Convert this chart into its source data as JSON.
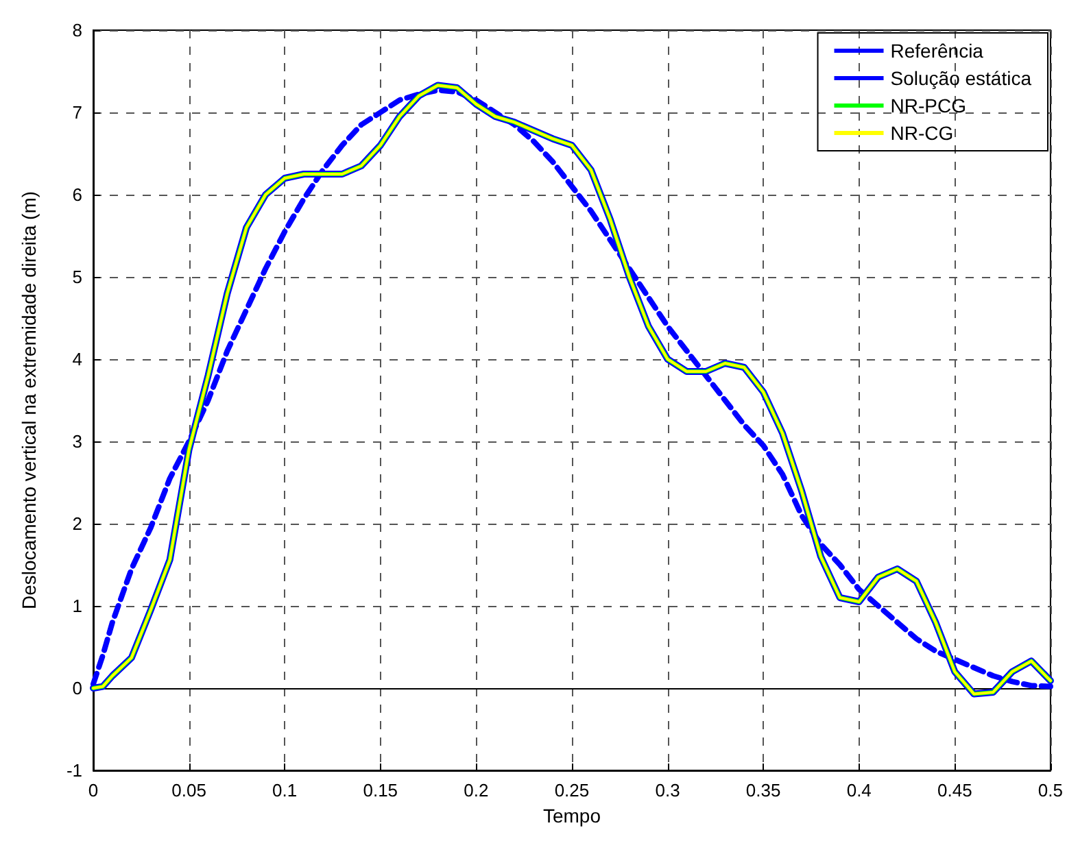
{
  "chart_data": {
    "type": "line",
    "xlabel": "Tempo",
    "ylabel": "Deslocamento vertical na extremidade direita (m)",
    "xlim": [
      0,
      0.5
    ],
    "xticks": [
      0,
      0.05,
      0.1,
      0.15,
      0.2,
      0.25,
      0.3,
      0.35,
      0.4,
      0.45,
      0.5
    ],
    "ylim": [
      -1,
      8
    ],
    "yticks": [
      -1,
      0,
      1,
      2,
      3,
      4,
      5,
      6,
      7,
      8
    ],
    "grid": true,
    "legend": "top right",
    "marker": "none",
    "x": [
      0,
      0.005,
      0.01,
      0.02,
      0.03,
      0.04,
      0.05,
      0.06,
      0.07,
      0.08,
      0.09,
      0.1,
      0.11,
      0.12,
      0.13,
      0.14,
      0.15,
      0.16,
      0.17,
      0.18,
      0.19,
      0.2,
      0.21,
      0.22,
      0.23,
      0.24,
      0.25,
      0.26,
      0.27,
      0.28,
      0.29,
      0.3,
      0.31,
      0.32,
      0.33,
      0.34,
      0.35,
      0.36,
      0.37,
      0.38,
      0.39,
      0.4,
      0.41,
      0.42,
      0.43,
      0.44,
      0.45,
      0.46,
      0.47,
      0.48,
      0.49,
      0.5
    ],
    "series": [
      {
        "name": "Referência",
        "color": "#0000ff",
        "line_style": "solid",
        "values": [
          0,
          0.02,
          0.15,
          0.37,
          0.95,
          1.56,
          2.9,
          3.8,
          4.8,
          5.6,
          6.0,
          6.2,
          6.25,
          6.25,
          6.25,
          6.35,
          6.6,
          6.95,
          7.2,
          7.33,
          7.3,
          7.1,
          6.95,
          6.88,
          6.78,
          6.68,
          6.6,
          6.3,
          5.7,
          5.0,
          4.4,
          4.0,
          3.85,
          3.85,
          3.95,
          3.9,
          3.6,
          3.1,
          2.4,
          1.6,
          1.1,
          1.05,
          1.35,
          1.45,
          1.3,
          0.8,
          0.2,
          -0.07,
          -0.05,
          0.2,
          0.33,
          0.09
        ]
      },
      {
        "name": "Solução estática",
        "color": "#0000ff",
        "line_style": "dashed",
        "values": [
          0.05,
          0.4,
          0.8,
          1.45,
          1.95,
          2.55,
          3.0,
          3.5,
          4.1,
          4.6,
          5.1,
          5.55,
          5.95,
          6.3,
          6.6,
          6.85,
          7.0,
          7.15,
          7.22,
          7.27,
          7.25,
          7.15,
          7.0,
          6.85,
          6.65,
          6.4,
          6.1,
          5.8,
          5.45,
          5.1,
          4.75,
          4.4,
          4.1,
          3.8,
          3.5,
          3.2,
          2.95,
          2.6,
          2.1,
          1.75,
          1.5,
          1.2,
          1.0,
          0.8,
          0.6,
          0.45,
          0.35,
          0.25,
          0.15,
          0.08,
          0.03,
          0.02
        ]
      },
      {
        "name": "NR-PCG",
        "color": "#00ff00",
        "line_style": "solid",
        "values": [
          0,
          0.02,
          0.15,
          0.37,
          0.95,
          1.56,
          2.9,
          3.8,
          4.8,
          5.6,
          6.0,
          6.2,
          6.25,
          6.25,
          6.25,
          6.35,
          6.6,
          6.95,
          7.2,
          7.33,
          7.3,
          7.1,
          6.95,
          6.88,
          6.78,
          6.68,
          6.6,
          6.3,
          5.7,
          5.0,
          4.4,
          4.0,
          3.85,
          3.85,
          3.95,
          3.9,
          3.6,
          3.1,
          2.4,
          1.6,
          1.1,
          1.05,
          1.35,
          1.45,
          1.3,
          0.8,
          0.2,
          -0.07,
          -0.05,
          0.2,
          0.33,
          0.09
        ]
      },
      {
        "name": "NR-CG",
        "color": "#ffff00",
        "line_style": "solid",
        "values": [
          0,
          0.02,
          0.15,
          0.37,
          0.95,
          1.56,
          2.9,
          3.8,
          4.8,
          5.6,
          6.0,
          6.2,
          6.25,
          6.25,
          6.25,
          6.35,
          6.6,
          6.95,
          7.2,
          7.33,
          7.3,
          7.1,
          6.95,
          6.88,
          6.78,
          6.68,
          6.6,
          6.3,
          5.7,
          5.0,
          4.4,
          4.0,
          3.85,
          3.85,
          3.95,
          3.9,
          3.6,
          3.1,
          2.4,
          1.6,
          1.1,
          1.05,
          1.35,
          1.45,
          1.3,
          0.8,
          0.2,
          -0.07,
          -0.05,
          0.2,
          0.33,
          0.09
        ]
      }
    ]
  }
}
